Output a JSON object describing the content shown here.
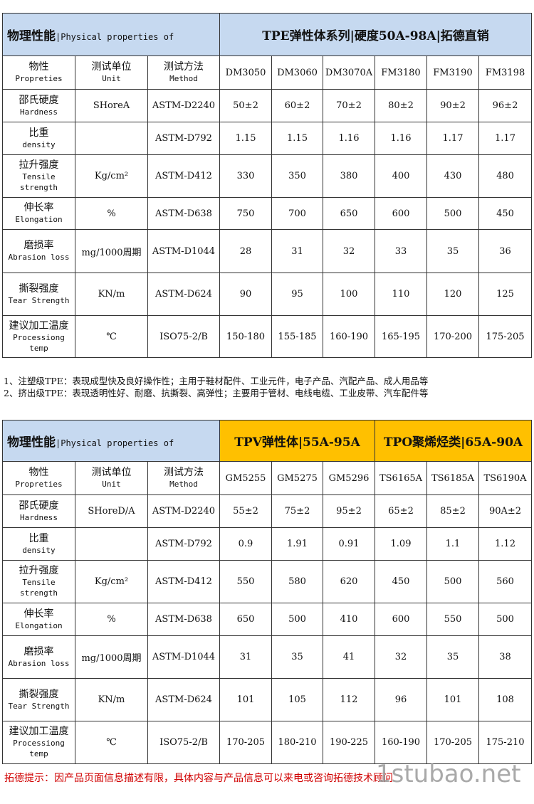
{
  "table1": {
    "title_zh": "物理性能",
    "title_en": "|Physical properties of",
    "series_title": "TPE弹性体系列|硬度50A-98A|拓德直销",
    "header": [
      {
        "zh": "物性",
        "en": "Propreties"
      },
      {
        "zh": "测试单位",
        "en": "Unit"
      },
      {
        "zh": "测试方法",
        "en": "Method"
      }
    ],
    "grades": [
      "DM3050",
      "DM3060",
      "DM3070A",
      "FM3180",
      "FM3190",
      "FM3198"
    ],
    "rows": [
      {
        "zh": "邵氏硬度",
        "en": "Hardness",
        "unit": "SHoreA",
        "method": "ASTM-D2240",
        "values": [
          "50±2",
          "60±2",
          "70±2",
          "80±2",
          "90±2",
          "96±2"
        ]
      },
      {
        "zh": "比重",
        "en": "density",
        "unit": "",
        "method": "ASTM-D792",
        "values": [
          "1.15",
          "1.15",
          "1.16",
          "1.16",
          "1.17",
          "1.17"
        ]
      },
      {
        "zh": "拉升强度",
        "en": "Tensile strength",
        "unit": "Kg/cm²",
        "method": "ASTM-D412",
        "values": [
          "330",
          "350",
          "380",
          "400",
          "430",
          "480"
        ]
      },
      {
        "zh": "伸长率",
        "en": "Elongation",
        "unit": "%",
        "method": "ASTM-D638",
        "values": [
          "750",
          "700",
          "650",
          "600",
          "500",
          "450"
        ]
      },
      {
        "zh": "磨损率",
        "en": "Abrasion loss",
        "unit": "mg/1000周期",
        "method": "ASTM-D1044",
        "values": [
          "28",
          "31",
          "32",
          "33",
          "35",
          "36"
        ]
      },
      {
        "zh": "撕裂强度",
        "en": "Tear Strength",
        "unit": "KN/m",
        "method": "ASTM-D624",
        "values": [
          "90",
          "95",
          "100",
          "110",
          "120",
          "125"
        ]
      },
      {
        "zh": "建议加工温度",
        "en": "Processiong temp",
        "unit": "℃",
        "method": "ISO75-2/B",
        "values": [
          "150-180",
          "155-185",
          "160-190",
          "165-195",
          "170-200",
          "175-205"
        ]
      }
    ]
  },
  "notes": [
    "1、注塑级TPE：表现成型快及良好操作性；主用于鞋材配件、工业元件，电子产品、汽配产品、成人用品等",
    "2、挤出级TPE：表现透明性好、耐磨、抗撕裂、高弹性；主要用于管材、电线电缆、工业皮带、汽车配件等"
  ],
  "table2": {
    "title_zh": "物理性能",
    "title_en": "|Physical properties of",
    "groups": [
      "TPV弹性体|55A-95A",
      "TPO聚烯烃类|65A-90A"
    ],
    "header": [
      {
        "zh": "物性",
        "en": "Propreties"
      },
      {
        "zh": "测试单位",
        "en": "Unit"
      },
      {
        "zh": "测试方法",
        "en": "Method"
      }
    ],
    "grades": [
      "GM5255",
      "GM5275",
      "GM5296",
      "TS6165A",
      "TS6185A",
      "TS6190A"
    ],
    "rows": [
      {
        "zh": "邵氏硬度",
        "en": "Hardness",
        "unit": "SHoreD/A",
        "method": "ASTM-D2240",
        "values": [
          "55±2",
          "75±2",
          "95±2",
          "65±2",
          "85±2",
          "90A±2"
        ]
      },
      {
        "zh": "比重",
        "en": "density",
        "unit": "",
        "method": "ASTM-D792",
        "values": [
          "0.9",
          "1.91",
          "0.91",
          "1.09",
          "1.1",
          "1.12"
        ]
      },
      {
        "zh": "拉升强度",
        "en": "Tensile strength",
        "unit": "Kg/cm²",
        "method": "ASTM-D412",
        "values": [
          "550",
          "580",
          "620",
          "450",
          "500",
          "560"
        ]
      },
      {
        "zh": "伸长率",
        "en": "Elongation",
        "unit": "%",
        "method": "ASTM-D638",
        "values": [
          "650",
          "500",
          "410",
          "600",
          "550",
          "500"
        ]
      },
      {
        "zh": "磨损率",
        "en": "Abrasion loss",
        "unit": "mg/1000周期",
        "method": "ASTM-D1044",
        "values": [
          "31",
          "35",
          "41",
          "32",
          "35",
          "38"
        ]
      },
      {
        "zh": "撕裂强度",
        "en": "Tear Strength",
        "unit": "KN/m",
        "method": "ASTM-D624",
        "values": [
          "101",
          "105",
          "112",
          "96",
          "101",
          "108"
        ]
      },
      {
        "zh": "建议加工温度",
        "en": "Processiong temp",
        "unit": "℃",
        "method": "ISO75-2/B",
        "values": [
          "170-205",
          "180-210",
          "190-225",
          "160-190",
          "170-205",
          "175-210"
        ]
      }
    ]
  },
  "footer": "拓德提示：因产品页面信息描述有限，具体内容与产品信息可以来电或咨询拓德技术顾问",
  "watermark": "1stubao.net"
}
